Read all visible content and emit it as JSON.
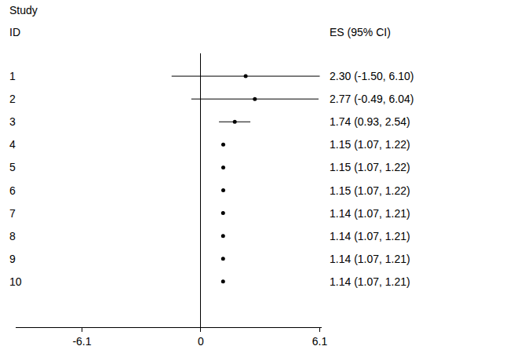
{
  "chart_data": {
    "type": "forest",
    "labels_title": [
      "Study",
      "ID"
    ],
    "values_title": "ES (95% CI)",
    "categories": [
      "1",
      "2",
      "3",
      "4",
      "5",
      "6",
      "7",
      "8",
      "9",
      "10"
    ],
    "values": [
      2.3,
      2.77,
      1.74,
      1.15,
      1.15,
      1.15,
      1.14,
      1.14,
      1.14,
      1.14
    ],
    "lower": [
      -1.5,
      -0.49,
      0.93,
      1.07,
      1.07,
      1.07,
      1.07,
      1.07,
      1.07,
      1.07
    ],
    "upper": [
      6.1,
      6.04,
      2.54,
      1.22,
      1.22,
      1.22,
      1.21,
      1.21,
      1.21,
      1.21
    ],
    "value_labels": [
      "2.30 (-1.50, 6.10)",
      "2.77 (-0.49, 6.04)",
      "1.74 (0.93, 2.54)",
      "1.15 (1.07, 1.22)",
      "1.15 (1.07, 1.22)",
      "1.15 (1.07, 1.22)",
      "1.14 (1.07, 1.21)",
      "1.14 (1.07, 1.21)",
      "1.14 (1.07, 1.21)",
      "1.14 (1.07, 1.21)"
    ],
    "data_labels": true,
    "xlim": [
      -9.5,
      6.2
    ],
    "xticks": [
      -6.1,
      0,
      6.1
    ],
    "grid": false,
    "color": "#000000"
  }
}
